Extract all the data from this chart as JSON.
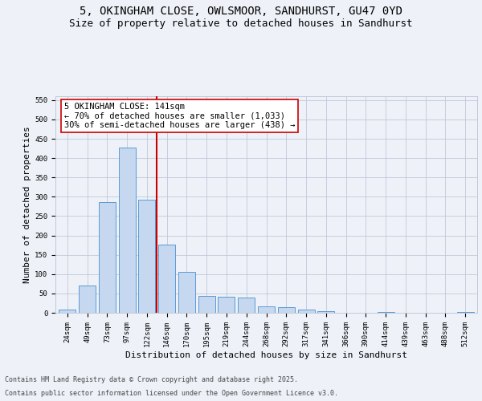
{
  "title_line1": "5, OKINGHAM CLOSE, OWLSMOOR, SANDHURST, GU47 0YD",
  "title_line2": "Size of property relative to detached houses in Sandhurst",
  "xlabel": "Distribution of detached houses by size in Sandhurst",
  "ylabel": "Number of detached properties",
  "categories": [
    "24sqm",
    "49sqm",
    "73sqm",
    "97sqm",
    "122sqm",
    "146sqm",
    "170sqm",
    "195sqm",
    "219sqm",
    "244sqm",
    "268sqm",
    "292sqm",
    "317sqm",
    "341sqm",
    "366sqm",
    "390sqm",
    "414sqm",
    "439sqm",
    "463sqm",
    "488sqm",
    "512sqm"
  ],
  "values": [
    8,
    70,
    287,
    428,
    293,
    176,
    106,
    44,
    41,
    39,
    16,
    14,
    8,
    5,
    0,
    0,
    2,
    0,
    0,
    0,
    3
  ],
  "bar_color": "#c5d8ef",
  "bar_edge_color": "#5b9bd5",
  "grid_color": "#c0c8d8",
  "background_color": "#eef2f8",
  "vline_x_index": 4.5,
  "vline_color": "#cc0000",
  "annotation_line1": "5 OKINGHAM CLOSE: 141sqm",
  "annotation_line2": "← 70% of detached houses are smaller (1,033)",
  "annotation_line3": "30% of semi-detached houses are larger (438) →",
  "annotation_box_color": "#ffffff",
  "annotation_box_edge": "#cc0000",
  "footer_line1": "Contains HM Land Registry data © Crown copyright and database right 2025.",
  "footer_line2": "Contains public sector information licensed under the Open Government Licence v3.0.",
  "ylim": [
    0,
    560
  ],
  "yticks": [
    0,
    50,
    100,
    150,
    200,
    250,
    300,
    350,
    400,
    450,
    500,
    550
  ],
  "title_fontsize": 10,
  "subtitle_fontsize": 9,
  "axis_label_fontsize": 8,
  "tick_fontsize": 6.5,
  "annotation_fontsize": 7.5,
  "footer_fontsize": 6
}
